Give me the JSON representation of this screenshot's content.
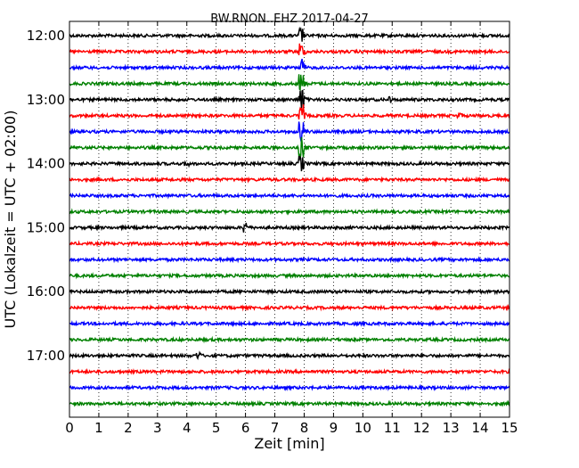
{
  "chart_data": {
    "type": "line",
    "title": "BW.RNON..EHZ 2017-04-27",
    "xlabel": "Zeit  [min]",
    "ylabel": "UTC (Lokalzeit = UTC + 02:00)",
    "xlim": [
      0,
      15
    ],
    "x_ticks": [
      "0",
      "1",
      "2",
      "3",
      "4",
      "5",
      "6",
      "7",
      "8",
      "9",
      "10",
      "11",
      "12",
      "13",
      "14",
      "15"
    ],
    "y_ticks": [
      {
        "label": "12:00",
        "trace_index": 0
      },
      {
        "label": "13:00",
        "trace_index": 4
      },
      {
        "label": "14:00",
        "trace_index": 8
      },
      {
        "label": "15:00",
        "trace_index": 12
      },
      {
        "label": "16:00",
        "trace_index": 16
      },
      {
        "label": "17:00",
        "trace_index": 20
      }
    ],
    "grid": {
      "vertical_dotted": true
    },
    "trace_interval_min": 15,
    "trace_colors": [
      "#000000",
      "#ff0000",
      "#0000ff",
      "#008000"
    ],
    "traces": [
      {
        "start": "12:00",
        "color": "#000000",
        "events": [
          {
            "x": 7.9,
            "amp": 0.45
          }
        ]
      },
      {
        "start": "12:15",
        "color": "#ff0000",
        "events": [
          {
            "x": 7.9,
            "amp": 0.5
          }
        ]
      },
      {
        "start": "12:30",
        "color": "#0000ff",
        "events": [
          {
            "x": 7.9,
            "amp": 0.55
          }
        ]
      },
      {
        "start": "12:45",
        "color": "#008000",
        "events": [
          {
            "x": 7.9,
            "amp": 0.6
          }
        ]
      },
      {
        "start": "13:00",
        "color": "#000000",
        "events": [
          {
            "x": 7.9,
            "amp": 0.7
          },
          {
            "x": 10.9,
            "amp": 0.2
          }
        ]
      },
      {
        "start": "13:15",
        "color": "#ff0000",
        "events": [
          {
            "x": 7.9,
            "amp": 0.6
          },
          {
            "x": 13.3,
            "amp": 0.15
          }
        ]
      },
      {
        "start": "13:30",
        "color": "#0000ff",
        "events": [
          {
            "x": 7.9,
            "amp": 0.6
          }
        ]
      },
      {
        "start": "13:45",
        "color": "#008000",
        "events": [
          {
            "x": 7.9,
            "amp": 0.6
          }
        ]
      },
      {
        "start": "14:00",
        "color": "#000000",
        "events": [
          {
            "x": 7.9,
            "amp": 0.45
          },
          {
            "x": 4.0,
            "amp": 0.15
          }
        ]
      },
      {
        "start": "14:15",
        "color": "#ff0000",
        "events": []
      },
      {
        "start": "14:30",
        "color": "#0000ff",
        "events": []
      },
      {
        "start": "14:45",
        "color": "#008000",
        "events": []
      },
      {
        "start": "15:00",
        "color": "#000000",
        "events": [
          {
            "x": 6.0,
            "amp": 0.35
          }
        ]
      },
      {
        "start": "15:15",
        "color": "#ff0000",
        "events": []
      },
      {
        "start": "15:30",
        "color": "#0000ff",
        "events": []
      },
      {
        "start": "15:45",
        "color": "#008000",
        "events": []
      },
      {
        "start": "16:00",
        "color": "#000000",
        "events": []
      },
      {
        "start": "16:15",
        "color": "#ff0000",
        "events": []
      },
      {
        "start": "16:30",
        "color": "#0000ff",
        "events": []
      },
      {
        "start": "16:45",
        "color": "#008000",
        "events": []
      },
      {
        "start": "17:00",
        "color": "#000000",
        "events": [
          {
            "x": 4.4,
            "amp": 0.2
          }
        ]
      },
      {
        "start": "17:15",
        "color": "#ff0000",
        "events": []
      },
      {
        "start": "17:30",
        "color": "#0000ff",
        "events": []
      },
      {
        "start": "17:45",
        "color": "#008000",
        "events": []
      }
    ]
  }
}
